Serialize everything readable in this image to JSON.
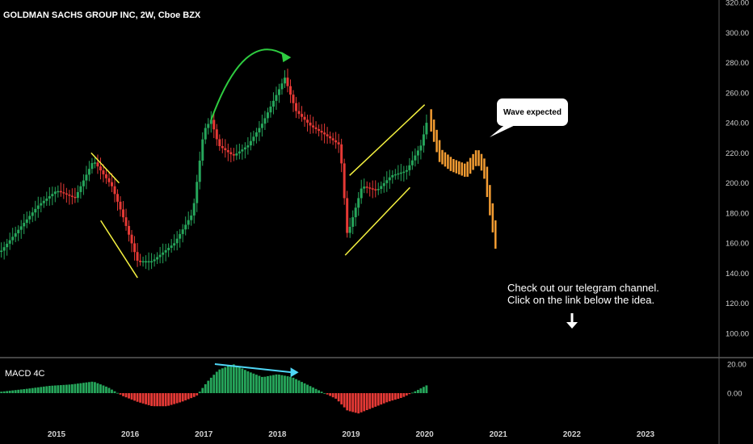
{
  "title": "GOLDMAN SACHS GROUP INC, 2W, Cboe BZX",
  "macd_label": "MACD 4C",
  "callout_text": "Wave expected",
  "note_lines": [
    "Check out our telegram channel.",
    "Click on the link below the idea."
  ],
  "icons": [
    "down-arrow-icon",
    "curved-arrow-icon"
  ],
  "colors": {
    "up": "#26a65b",
    "down": "#e53935",
    "projection": "#f39c32",
    "pattern_lines": "#f5f240",
    "divergence_line": "#4fd6f5",
    "curved_arrow": "#2ecc40",
    "background": "#000000"
  },
  "chart_data": [
    {
      "type": "line",
      "name": "price",
      "y_axis_ticks": [
        "320.00",
        "300.00",
        "280.00",
        "260.00",
        "240.00",
        "220.00",
        "200.00",
        "180.00",
        "160.00",
        "140.00",
        "120.00",
        "100.00"
      ],
      "x_axis_ticks": [
        "2015",
        "2016",
        "2017",
        "2018",
        "2019",
        "2020",
        "2021",
        "2022",
        "2023"
      ],
      "ylim": [
        90,
        322
      ],
      "xlim": [
        2014.25,
        2023.8
      ],
      "series": [
        {
          "x": [
            2014.25,
            2014.5,
            2014.75,
            2015.0,
            2015.25,
            2015.5,
            2015.75,
            2015.9,
            2016.1,
            2016.3,
            2016.6,
            2016.85,
            2017.0,
            2017.1,
            2017.2,
            2017.4,
            2017.6,
            2017.8,
            2017.95,
            2018.1,
            2018.25,
            2018.45,
            2018.65,
            2018.85,
            2018.95,
            2019.15,
            2019.35,
            2019.55,
            2019.75,
            2019.95,
            2020.05
          ],
          "y": [
            155,
            170,
            185,
            195,
            190,
            215,
            198,
            178,
            148,
            148,
            160,
            180,
            235,
            242,
            225,
            218,
            225,
            240,
            255,
            270,
            248,
            238,
            232,
            225,
            165,
            198,
            195,
            205,
            208,
            225,
            245
          ]
        },
        {
          "name": "projection",
          "x": [
            2020.05,
            2020.2,
            2020.35,
            2020.55,
            2020.7,
            2020.8,
            2020.9,
            2020.97
          ],
          "y": [
            245,
            218,
            212,
            208,
            218,
            210,
            178,
            158
          ]
        }
      ]
    },
    {
      "type": "bar",
      "name": "MACD 4C",
      "y_axis_ticks": [
        "20.00",
        "0.00"
      ],
      "ylim": [
        -16,
        22
      ],
      "x": [
        2014.25,
        2014.6,
        2014.9,
        2015.2,
        2015.5,
        2015.7,
        2015.9,
        2016.1,
        2016.3,
        2016.5,
        2016.7,
        2016.9,
        2017.05,
        2017.2,
        2017.4,
        2017.6,
        2017.8,
        2018.0,
        2018.2,
        2018.4,
        2018.6,
        2018.8,
        2018.95,
        2019.1,
        2019.3,
        2019.5,
        2019.7,
        2019.9,
        2020.05
      ],
      "values": [
        1,
        3,
        5,
        6,
        8,
        4,
        -2,
        -6,
        -9,
        -9,
        -6,
        -2,
        8,
        16,
        20,
        15,
        11,
        13,
        11,
        6,
        1,
        -4,
        -12,
        -14,
        -10,
        -6,
        -3,
        2,
        6
      ]
    }
  ]
}
